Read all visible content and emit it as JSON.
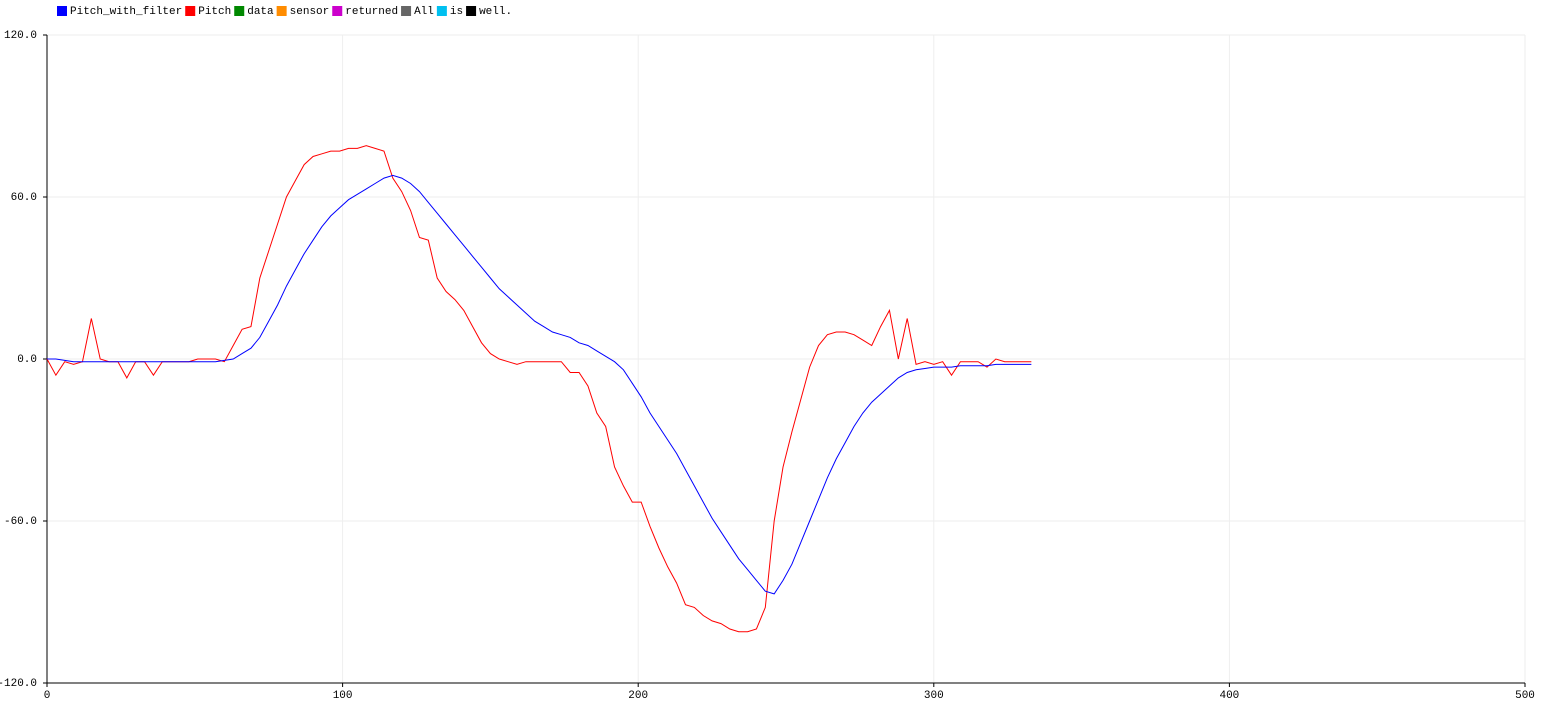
{
  "chart_data": {
    "type": "line",
    "x": [
      0,
      3,
      6,
      9,
      12,
      15,
      18,
      21,
      24,
      27,
      30,
      33,
      36,
      39,
      42,
      45,
      48,
      51,
      54,
      57,
      60,
      63,
      66,
      69,
      72,
      75,
      78,
      81,
      84,
      87,
      90,
      93,
      96,
      99,
      102,
      105,
      108,
      111,
      114,
      117,
      120,
      123,
      126,
      129,
      132,
      135,
      138,
      141,
      144,
      147,
      150,
      153,
      156,
      159,
      162,
      165,
      168,
      171,
      174,
      177,
      180,
      183,
      186,
      189,
      192,
      195,
      198,
      201,
      204,
      207,
      210,
      213,
      216,
      219,
      222,
      225,
      228,
      231,
      234,
      237,
      240,
      243,
      246,
      249,
      252,
      255,
      258,
      261,
      264,
      267,
      270,
      273,
      276,
      279,
      282,
      285,
      288,
      291,
      294,
      297,
      300,
      303,
      306,
      309,
      312,
      315,
      318,
      321,
      324,
      327,
      330,
      333
    ],
    "series": [
      {
        "name": "Pitch_with_filter",
        "color": "#0000ff",
        "values": [
          0,
          0,
          -0.5,
          -1,
          -1,
          -1,
          -1,
          -1,
          -1,
          -1,
          -1,
          -1,
          -1,
          -1,
          -1,
          -1,
          -1,
          -1,
          -1,
          -1,
          -0.5,
          0,
          2,
          4,
          8,
          14,
          20,
          27,
          33,
          39,
          44,
          49,
          53,
          56,
          59,
          61,
          63,
          65,
          67,
          68,
          67,
          65,
          62,
          58,
          54,
          50,
          46,
          42,
          38,
          34,
          30,
          26,
          23,
          20,
          17,
          14,
          12,
          10,
          9,
          8,
          6,
          5,
          3,
          1,
          -1,
          -4,
          -9,
          -14,
          -20,
          -25,
          -30,
          -35,
          -41,
          -47,
          -53,
          -59,
          -64,
          -69,
          -74,
          -78,
          -82,
          -86,
          -87,
          -82,
          -76,
          -68,
          -60,
          -52,
          -44,
          -37,
          -31,
          -25,
          -20,
          -16,
          -13,
          -10,
          -7,
          -5,
          -4,
          -3.5,
          -3,
          -3,
          -3,
          -2.5,
          -2.5,
          -2.5,
          -2.5,
          -2,
          -2,
          -2,
          -2,
          -2
        ]
      },
      {
        "name": "Pitch",
        "color": "#ff0000",
        "values": [
          0,
          -6,
          -1,
          -2,
          -1,
          15,
          0,
          -1,
          -1,
          -7,
          -1,
          -1,
          -6,
          -1,
          -1,
          -1,
          -1,
          0,
          0,
          0,
          -1,
          5,
          11,
          12,
          30,
          40,
          50,
          60,
          66,
          72,
          75,
          76,
          77,
          77,
          78,
          78,
          79,
          78,
          77,
          67,
          62,
          55,
          45,
          44,
          30,
          25,
          22,
          18,
          12,
          6,
          2,
          0,
          -1,
          -2,
          -1,
          -1,
          -1,
          -1,
          -1,
          -5,
          -5,
          -10,
          -20,
          -25,
          -40,
          -47,
          -53,
          -53,
          -62,
          -70,
          -77,
          -83,
          -91,
          -92,
          -95,
          -97,
          -98,
          -100,
          -101,
          -101,
          -100,
          -92,
          -60,
          -40,
          -27,
          -15,
          -3,
          5,
          9,
          10,
          10,
          9,
          7,
          5,
          12,
          18,
          0,
          15,
          -2,
          -1,
          -2,
          -1,
          -6,
          -1,
          -1,
          -1,
          -3,
          0,
          -1,
          -1,
          -1,
          -1
        ]
      },
      {
        "name": "data",
        "color": "#008800"
      },
      {
        "name": "sensor",
        "color": "#ff8c00"
      },
      {
        "name": "returned",
        "color": "#cc00cc"
      },
      {
        "name": "All",
        "color": "#666666"
      },
      {
        "name": "is",
        "color": "#00c0f0"
      },
      {
        "name": "well.",
        "color": "#000000"
      }
    ],
    "xlim": [
      0,
      500
    ],
    "xticks": [
      0,
      100,
      200,
      300,
      400,
      500
    ],
    "ylim": [
      -120,
      120
    ],
    "yticks": [
      {
        "value": 120,
        "label": "120.0"
      },
      {
        "value": 60,
        "label": "60.0"
      },
      {
        "value": 0,
        "label": "0.0"
      },
      {
        "value": -60,
        "label": "-60.0"
      },
      {
        "value": -120,
        "label": "-120.0"
      }
    ],
    "grid": true
  }
}
